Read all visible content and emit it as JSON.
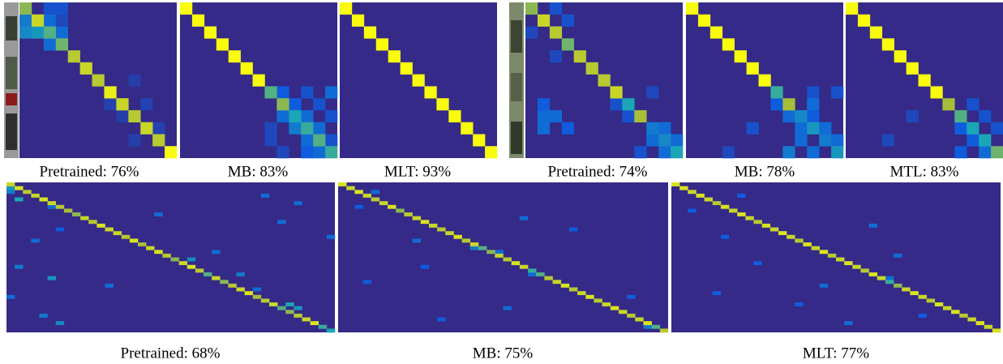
{
  "chart_data": [
    {
      "type": "heatmap",
      "caption": "Pretrained: 76%",
      "size": 13,
      "vlim": [
        0,
        1
      ],
      "colormap": [
        "#352a87",
        "#0f5cdd",
        "#1aa6b6",
        "#a8bd3a",
        "#f9fb0e"
      ],
      "diagonal": [
        0.7,
        0.85,
        0.6,
        0.65,
        0.8,
        0.85,
        0.8,
        0.95,
        0.85,
        0.8,
        0.85,
        0.8,
        1.0
      ],
      "off_diagonal": [
        [
          1,
          0,
          0.35
        ],
        [
          1,
          2,
          0.3
        ],
        [
          2,
          0,
          0.4
        ],
        [
          2,
          1,
          0.45
        ],
        [
          2,
          3,
          0.3
        ],
        [
          3,
          2,
          0.3
        ],
        [
          0,
          2,
          0.2
        ],
        [
          0,
          3,
          0.2
        ],
        [
          1,
          3,
          0.15
        ],
        [
          8,
          7,
          0.12
        ],
        [
          8,
          10,
          0.12
        ],
        [
          9,
          8,
          0.1
        ],
        [
          10,
          11,
          0.12
        ],
        [
          11,
          9,
          0.1
        ],
        [
          6,
          9,
          0.1
        ]
      ]
    },
    {
      "type": "heatmap",
      "caption": "MB: 83%",
      "size": 13,
      "vlim": [
        0,
        1
      ],
      "colormap": [
        "#352a87",
        "#0f5cdd",
        "#1aa6b6",
        "#a8bd3a",
        "#f9fb0e"
      ],
      "diagonal": [
        1.0,
        1.0,
        1.0,
        1.0,
        1.0,
        1.0,
        1.0,
        0.6,
        0.7,
        0.5,
        0.55,
        0.6,
        0.55
      ],
      "off_diagonal": [
        [
          7,
          8,
          0.25
        ],
        [
          7,
          10,
          0.2
        ],
        [
          7,
          12,
          0.3
        ],
        [
          8,
          9,
          0.25
        ],
        [
          8,
          11,
          0.2
        ],
        [
          9,
          8,
          0.3
        ],
        [
          9,
          10,
          0.3
        ],
        [
          10,
          9,
          0.35
        ],
        [
          10,
          11,
          0.3
        ],
        [
          11,
          10,
          0.3
        ],
        [
          11,
          12,
          0.2
        ],
        [
          12,
          10,
          0.25
        ],
        [
          12,
          11,
          0.3
        ],
        [
          9,
          12,
          0.2
        ],
        [
          10,
          7,
          0.15
        ],
        [
          11,
          7,
          0.15
        ],
        [
          12,
          8,
          0.15
        ]
      ]
    },
    {
      "type": "heatmap",
      "caption": "MLT: 93%",
      "size": 13,
      "vlim": [
        0,
        1
      ],
      "colormap": [
        "#352a87",
        "#0f5cdd",
        "#1aa6b6",
        "#a8bd3a",
        "#f9fb0e"
      ],
      "diagonal": [
        1.0,
        1.0,
        1.0,
        1.0,
        1.0,
        1.0,
        1.0,
        1.0,
        1.0,
        1.0,
        1.0,
        1.0,
        1.0
      ],
      "off_diagonal": []
    },
    {
      "type": "heatmap",
      "caption": "Pretrained: 74%",
      "size": 13,
      "vlim": [
        0,
        1
      ],
      "colormap": [
        "#352a87",
        "#0f5cdd",
        "#1aa6b6",
        "#a8bd3a",
        "#f9fb0e"
      ],
      "diagonal": [
        0.7,
        0.85,
        0.8,
        0.65,
        0.8,
        0.8,
        0.8,
        0.85,
        0.5,
        0.75,
        0.35,
        0.4,
        0.5
      ],
      "off_diagonal": [
        [
          0,
          2,
          0.2
        ],
        [
          1,
          3,
          0.2
        ],
        [
          2,
          0,
          0.15
        ],
        [
          4,
          2,
          0.15
        ],
        [
          8,
          1,
          0.25
        ],
        [
          8,
          7,
          0.2
        ],
        [
          9,
          1,
          0.3
        ],
        [
          9,
          2,
          0.3
        ],
        [
          9,
          8,
          0.2
        ],
        [
          10,
          1,
          0.3
        ],
        [
          10,
          3,
          0.25
        ],
        [
          10,
          11,
          0.3
        ],
        [
          11,
          10,
          0.3
        ],
        [
          11,
          12,
          0.3
        ],
        [
          12,
          9,
          0.2
        ],
        [
          12,
          11,
          0.3
        ],
        [
          7,
          10,
          0.15
        ]
      ]
    },
    {
      "type": "heatmap",
      "caption": "MB: 78%",
      "size": 13,
      "vlim": [
        0,
        1
      ],
      "colormap": [
        "#352a87",
        "#0f5cdd",
        "#1aa6b6",
        "#a8bd3a",
        "#f9fb0e"
      ],
      "diagonal": [
        1.0,
        1.0,
        1.0,
        1.0,
        1.0,
        1.0,
        1.0,
        0.55,
        0.75,
        0.4,
        0.45,
        0.35,
        0.45
      ],
      "off_diagonal": [
        [
          7,
          10,
          0.2
        ],
        [
          7,
          12,
          0.2
        ],
        [
          8,
          7,
          0.25
        ],
        [
          8,
          10,
          0.3
        ],
        [
          9,
          8,
          0.3
        ],
        [
          9,
          10,
          0.25
        ],
        [
          10,
          9,
          0.3
        ],
        [
          10,
          11,
          0.3
        ],
        [
          11,
          9,
          0.3
        ],
        [
          11,
          12,
          0.3
        ],
        [
          12,
          8,
          0.35
        ],
        [
          12,
          10,
          0.3
        ],
        [
          10,
          5,
          0.2
        ],
        [
          12,
          3,
          0.15
        ]
      ]
    },
    {
      "type": "heatmap",
      "caption": "MTL: 83%",
      "size": 13,
      "vlim": [
        0,
        1
      ],
      "colormap": [
        "#352a87",
        "#0f5cdd",
        "#1aa6b6",
        "#a8bd3a",
        "#f9fb0e"
      ],
      "diagonal": [
        1.0,
        1.0,
        1.0,
        1.0,
        1.0,
        1.0,
        1.0,
        1.0,
        0.75,
        0.6,
        0.5,
        0.5,
        0.65
      ],
      "off_diagonal": [
        [
          8,
          10,
          0.2
        ],
        [
          9,
          11,
          0.2
        ],
        [
          10,
          9,
          0.25
        ],
        [
          10,
          12,
          0.2
        ],
        [
          11,
          10,
          0.25
        ],
        [
          12,
          9,
          0.25
        ],
        [
          12,
          11,
          0.3
        ],
        [
          9,
          5,
          0.15
        ],
        [
          11,
          3,
          0.15
        ]
      ]
    },
    {
      "type": "heatmap",
      "caption": "Pretrained: 68%",
      "size": 40,
      "vlim": [
        0,
        1
      ],
      "colormap": [
        "#352a87",
        "#0f5cdd",
        "#1aa6b6",
        "#a8bd3a",
        "#f9fb0e"
      ],
      "diagonal": [
        0.85,
        0.9,
        0.8,
        0.85,
        0.9,
        0.85,
        0.8,
        0.75,
        0.7,
        0.85,
        0.8,
        0.9,
        0.85,
        0.85,
        0.8,
        0.9,
        0.75,
        0.85,
        0.9,
        0.8,
        0.7,
        0.85,
        0.9,
        0.8,
        0.6,
        0.85,
        0.7,
        0.8,
        0.85,
        0.9,
        0.75,
        0.8,
        0.85,
        0.6,
        0.7,
        0.8,
        0.85,
        0.9,
        0.55,
        0.5
      ],
      "off_diagonal": [
        [
          1,
          0,
          0.45
        ],
        [
          2,
          0,
          0.35
        ],
        [
          4,
          1,
          0.5
        ],
        [
          6,
          5,
          0.3
        ],
        [
          8,
          18,
          0.3
        ],
        [
          10,
          33,
          0.3
        ],
        [
          12,
          6,
          0.25
        ],
        [
          15,
          3,
          0.3
        ],
        [
          18,
          25,
          0.3
        ],
        [
          20,
          22,
          0.4
        ],
        [
          22,
          1,
          0.35
        ],
        [
          25,
          5,
          0.45
        ],
        [
          27,
          12,
          0.3
        ],
        [
          28,
          30,
          0.3
        ],
        [
          30,
          0,
          0.3
        ],
        [
          32,
          34,
          0.5
        ],
        [
          33,
          35,
          0.45
        ],
        [
          35,
          4,
          0.35
        ],
        [
          37,
          6,
          0.4
        ],
        [
          3,
          31,
          0.3
        ],
        [
          5,
          35,
          0.3
        ],
        [
          14,
          39,
          0.3
        ],
        [
          24,
          28,
          0.35
        ]
      ]
    },
    {
      "type": "heatmap",
      "caption": "MB: 75%",
      "size": 40,
      "vlim": [
        0,
        1
      ],
      "colormap": [
        "#352a87",
        "#0f5cdd",
        "#1aa6b6",
        "#a8bd3a",
        "#f9fb0e"
      ],
      "diagonal": [
        0.9,
        0.85,
        0.9,
        0.85,
        0.8,
        0.85,
        0.9,
        0.7,
        0.8,
        0.85,
        0.9,
        0.85,
        0.8,
        0.85,
        0.9,
        0.8,
        0.85,
        0.6,
        0.7,
        0.85,
        0.8,
        0.9,
        0.85,
        0.55,
        0.6,
        0.8,
        0.85,
        0.9,
        0.8,
        0.85,
        0.9,
        0.8,
        0.85,
        0.9,
        0.85,
        0.8,
        0.85,
        0.9,
        0.6,
        0.8
      ],
      "off_diagonal": [
        [
          2,
          4,
          0.3
        ],
        [
          6,
          2,
          0.25
        ],
        [
          9,
          22,
          0.3
        ],
        [
          12,
          28,
          0.25
        ],
        [
          15,
          9,
          0.3
        ],
        [
          17,
          16,
          0.35
        ],
        [
          18,
          19,
          0.3
        ],
        [
          22,
          10,
          0.25
        ],
        [
          24,
          23,
          0.3
        ],
        [
          26,
          3,
          0.25
        ],
        [
          30,
          35,
          0.25
        ],
        [
          33,
          20,
          0.3
        ],
        [
          36,
          12,
          0.25
        ],
        [
          38,
          37,
          0.35
        ]
      ]
    },
    {
      "type": "heatmap",
      "caption": "MLT: 77%",
      "size": 40,
      "vlim": [
        0,
        1
      ],
      "colormap": [
        "#352a87",
        "#0f5cdd",
        "#1aa6b6",
        "#a8bd3a",
        "#f9fb0e"
      ],
      "diagonal": [
        0.9,
        0.9,
        0.85,
        0.9,
        0.85,
        0.8,
        0.9,
        0.85,
        0.9,
        0.85,
        0.8,
        0.9,
        0.85,
        0.9,
        0.85,
        0.8,
        0.9,
        0.85,
        0.9,
        0.8,
        0.85,
        0.9,
        0.85,
        0.8,
        0.9,
        0.85,
        0.55,
        0.7,
        0.85,
        0.9,
        0.85,
        0.8,
        0.9,
        0.85,
        0.9,
        0.8,
        0.85,
        0.9,
        0.85,
        0.9
      ],
      "off_diagonal": [
        [
          3,
          8,
          0.25
        ],
        [
          7,
          2,
          0.25
        ],
        [
          11,
          24,
          0.3
        ],
        [
          14,
          6,
          0.25
        ],
        [
          19,
          27,
          0.3
        ],
        [
          21,
          10,
          0.25
        ],
        [
          25,
          26,
          0.3
        ],
        [
          27,
          18,
          0.3
        ],
        [
          29,
          5,
          0.25
        ],
        [
          32,
          15,
          0.25
        ],
        [
          35,
          30,
          0.25
        ],
        [
          37,
          21,
          0.3
        ]
      ]
    }
  ]
}
